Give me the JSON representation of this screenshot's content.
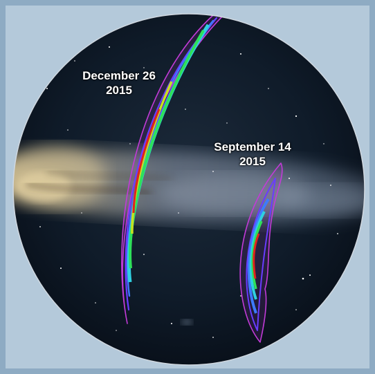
{
  "image": {
    "description_colors": {
      "frame": "#8eabc3",
      "sky_dark": "#0b1420",
      "milky_way": "#c7b58a",
      "contour_outer": "#c23bd8",
      "contour_blue": "#3d5cff",
      "contour_cyan": "#2fd0e0",
      "contour_green": "#2ee05a",
      "contour_core": "#e0231c"
    }
  },
  "events": [
    {
      "date": "December 26",
      "year": "2015"
    },
    {
      "date": "September 14",
      "year": "2015"
    }
  ]
}
